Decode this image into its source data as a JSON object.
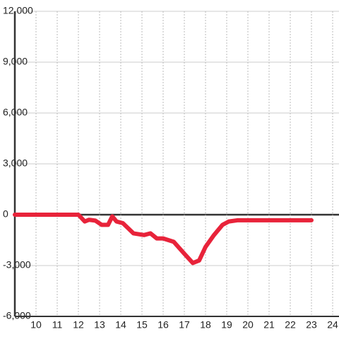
{
  "chart_data": {
    "type": "line",
    "x": [
      9,
      12.0,
      12.3,
      12.5,
      12.8,
      13.1,
      13.4,
      13.6,
      13.8,
      14.1,
      14.6,
      15.1,
      15.4,
      15.7,
      16.0,
      16.5,
      17.0,
      17.4,
      17.7,
      18.0,
      18.4,
      18.8,
      19.1,
      19.5,
      23.0
    ],
    "series": [
      {
        "color": "#e8233a",
        "values": [
          0,
          0,
          -400,
          -300,
          -350,
          -600,
          -600,
          -100,
          -400,
          -500,
          -1100,
          -1200,
          -1100,
          -1400,
          -1400,
          -1600,
          -2300,
          -2850,
          -2700,
          -1900,
          -1200,
          -600,
          -400,
          -330,
          -330
        ]
      }
    ],
    "xlim": [
      9,
      24.3
    ],
    "xticks": [
      10,
      11,
      12,
      13,
      14,
      15,
      16,
      17,
      18,
      19,
      20,
      21,
      22,
      23,
      24
    ],
    "ylim": [
      -6000,
      12000
    ],
    "yticks": [
      {
        "value": -6000,
        "label": "-6,000"
      },
      {
        "value": -3000,
        "label": "-3,000"
      },
      0,
      {
        "value": 3000,
        "label": "3,000"
      },
      {
        "value": 6000,
        "label": "6,000"
      },
      {
        "value": 9000,
        "label": "9,000"
      },
      {
        "value": 12000,
        "label": "12,000"
      }
    ],
    "grid": true
  }
}
